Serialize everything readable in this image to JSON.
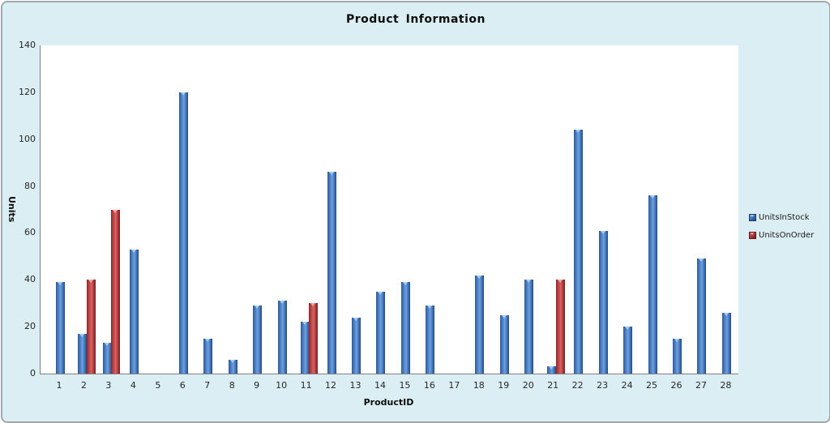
{
  "title": "Product Information",
  "axis": {
    "y_title": "Units",
    "x_title": "ProductID"
  },
  "colors": {
    "background": "#DAEEF3",
    "plot_background": "#FFFFFF",
    "frame_border": "#A2A9AD",
    "axis_line": "#7F7F7F",
    "series_blue": "#4F81BD",
    "series_red": "#C0504D"
  },
  "legend": {
    "position": "right",
    "items": [
      {
        "label": "UnitsInStock",
        "color": "#4F81BD"
      },
      {
        "label": "UnitsOnOrder",
        "color": "#C0504D"
      }
    ]
  },
  "chart_data": {
    "type": "bar",
    "title": "Product Information",
    "xlabel": "ProductID",
    "ylabel": "Units",
    "ylim": [
      0,
      140
    ],
    "y_ticks": [
      0,
      20,
      40,
      60,
      80,
      100,
      120,
      140
    ],
    "grid": false,
    "legend_position": "right",
    "categories": [
      1,
      2,
      3,
      4,
      5,
      6,
      7,
      8,
      9,
      10,
      11,
      12,
      13,
      14,
      15,
      16,
      17,
      18,
      19,
      20,
      21,
      22,
      23,
      24,
      25,
      26,
      27,
      28
    ],
    "series": [
      {
        "name": "UnitsInStock",
        "color": "#4F81BD",
        "values": [
          39,
          17,
          13,
          53,
          0,
          120,
          15,
          6,
          29,
          31,
          22,
          86,
          24,
          35,
          39,
          29,
          0,
          42,
          25,
          40,
          3,
          104,
          61,
          20,
          76,
          15,
          49,
          26
        ]
      },
      {
        "name": "UnitsOnOrder",
        "color": "#C0504D",
        "values": [
          0,
          40,
          70,
          0,
          0,
          0,
          0,
          0,
          0,
          0,
          30,
          0,
          0,
          0,
          0,
          0,
          0,
          0,
          0,
          0,
          40,
          0,
          0,
          0,
          0,
          0,
          0,
          0
        ]
      }
    ]
  }
}
